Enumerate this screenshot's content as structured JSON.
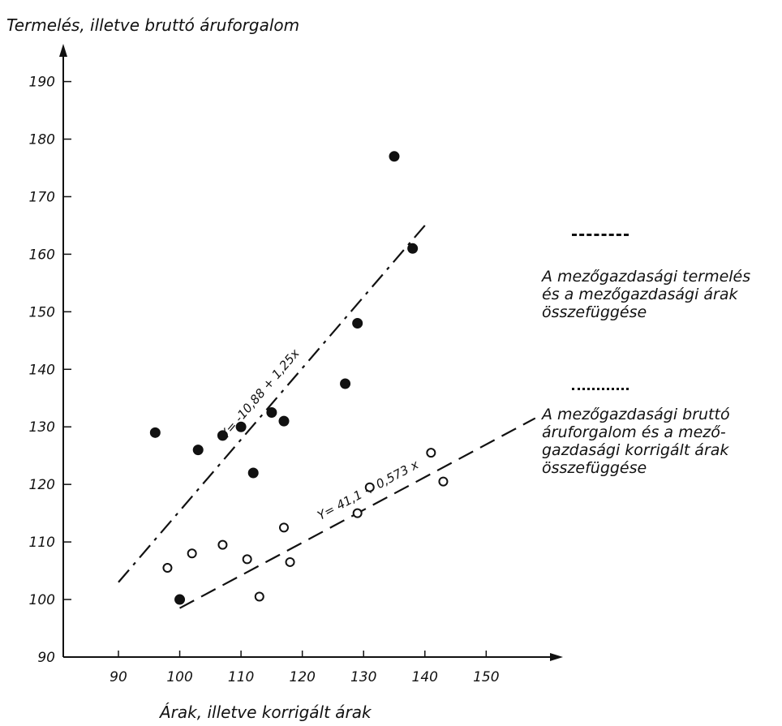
{
  "chart_data": {
    "type": "scatter",
    "title": "",
    "ylabel": "Termelés, illetve bruttó áruforgalom",
    "xlabel": "Árak, illetve korrigált árak",
    "xlim": [
      81,
      162
    ],
    "ylim": [
      90,
      196
    ],
    "x_ticks": [
      90,
      100,
      110,
      120,
      130,
      140,
      150
    ],
    "y_ticks": [
      90,
      100,
      110,
      120,
      130,
      140,
      150,
      160,
      170,
      180,
      190
    ],
    "series": [
      {
        "marker": "filled-circle",
        "points": [
          [
            96,
            129
          ],
          [
            103,
            126
          ],
          [
            107,
            128.5
          ],
          [
            110,
            130
          ],
          [
            112,
            122
          ],
          [
            115,
            132.5
          ],
          [
            117,
            131
          ],
          [
            127,
            137.5
          ],
          [
            129,
            148
          ],
          [
            135,
            177
          ],
          [
            138,
            161
          ],
          [
            100,
            100
          ]
        ]
      },
      {
        "marker": "open-circle",
        "points": [
          [
            98,
            105.5
          ],
          [
            102,
            108
          ],
          [
            107,
            109.5
          ],
          [
            111,
            107
          ],
          [
            113,
            100.5
          ],
          [
            117,
            112.5
          ],
          [
            118,
            106.5
          ],
          [
            129,
            115
          ],
          [
            131,
            119.5
          ],
          [
            141,
            125.5
          ],
          [
            143,
            120.5
          ]
        ]
      }
    ],
    "lines": [
      {
        "style": "dash-dot",
        "equation": "Y= -10,88 + 1,25x",
        "from": [
          90,
          103
        ],
        "to": [
          140,
          165
        ]
      },
      {
        "style": "dashed",
        "equation": "Y= 41,1 + 0,573 x",
        "from": [
          100,
          98.5
        ],
        "to": [
          158,
          131.5
        ]
      }
    ],
    "legend": [
      {
        "swatch": "dashed",
        "lines": [
          "A mezőgazdasági termelés",
          "és a mezőgazdasági árak",
          "összefüggése"
        ]
      },
      {
        "swatch": "dash-dot",
        "lines": [
          "A mezőgazdasági bruttó",
          "áruforgalom és a mező-",
          "gazdasági korrigált árak",
          "összefüggése"
        ]
      }
    ],
    "grid": false,
    "legend_placement": "right"
  }
}
